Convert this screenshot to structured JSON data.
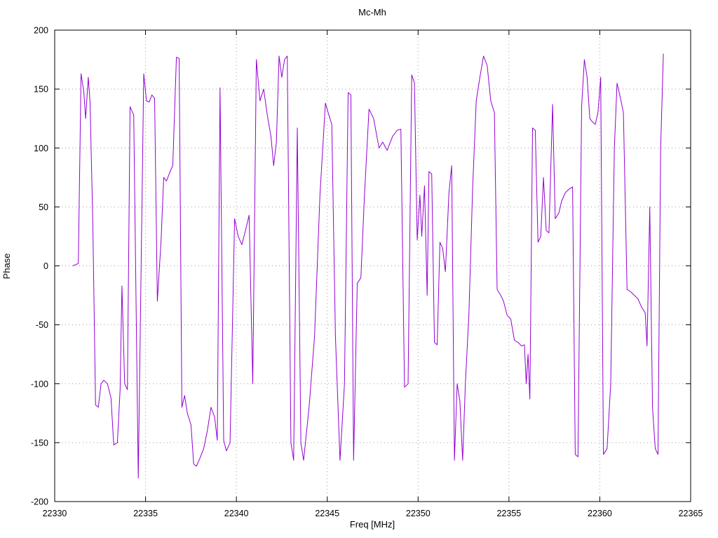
{
  "chart_data": {
    "type": "line",
    "title": "Mc-Mh",
    "xlabel": "Freq [MHz]",
    "ylabel": "Phase",
    "xlim": [
      22330,
      22365
    ],
    "ylim": [
      -200,
      200
    ],
    "grid": true,
    "legend": "none",
    "line_color": "#9400d3",
    "xticks": [
      22330,
      22335,
      22340,
      22345,
      22350,
      22355,
      22360,
      22365
    ],
    "yticks": [
      -200,
      -150,
      -100,
      -50,
      0,
      50,
      100,
      150,
      200
    ],
    "series": [
      {
        "name": "Mc-Mh",
        "points": [
          [
            22331.0,
            0
          ],
          [
            22331.3,
            2
          ],
          [
            22331.45,
            163
          ],
          [
            22331.6,
            148
          ],
          [
            22331.7,
            125
          ],
          [
            22331.85,
            160
          ],
          [
            22331.95,
            138
          ],
          [
            22332.1,
            35
          ],
          [
            22332.25,
            -118
          ],
          [
            22332.4,
            -120
          ],
          [
            22332.55,
            -100
          ],
          [
            22332.7,
            -97
          ],
          [
            22332.9,
            -100
          ],
          [
            22333.1,
            -112
          ],
          [
            22333.25,
            -152
          ],
          [
            22333.45,
            -150
          ],
          [
            22333.6,
            -105
          ],
          [
            22333.7,
            -17
          ],
          [
            22333.85,
            -100
          ],
          [
            22334.0,
            -105
          ],
          [
            22334.15,
            135
          ],
          [
            22334.35,
            128
          ],
          [
            22334.6,
            -180
          ],
          [
            22334.9,
            163
          ],
          [
            22335.05,
            140
          ],
          [
            22335.2,
            139
          ],
          [
            22335.35,
            145
          ],
          [
            22335.5,
            142
          ],
          [
            22335.65,
            -30
          ],
          [
            22335.85,
            20
          ],
          [
            22336.0,
            75
          ],
          [
            22336.15,
            72
          ],
          [
            22336.35,
            80
          ],
          [
            22336.5,
            85
          ],
          [
            22336.7,
            177
          ],
          [
            22336.85,
            176
          ],
          [
            22337.0,
            -120
          ],
          [
            22337.15,
            -110
          ],
          [
            22337.3,
            -125
          ],
          [
            22337.5,
            -135
          ],
          [
            22337.65,
            -168
          ],
          [
            22337.8,
            -170
          ],
          [
            22338.0,
            -163
          ],
          [
            22338.2,
            -155
          ],
          [
            22338.4,
            -140
          ],
          [
            22338.6,
            -120
          ],
          [
            22338.8,
            -128
          ],
          [
            22338.95,
            -148
          ],
          [
            22339.1,
            151
          ],
          [
            22339.3,
            -148
          ],
          [
            22339.45,
            -157
          ],
          [
            22339.65,
            -150
          ],
          [
            22339.9,
            40
          ],
          [
            22340.1,
            25
          ],
          [
            22340.3,
            18
          ],
          [
            22340.5,
            30
          ],
          [
            22340.7,
            43
          ],
          [
            22340.9,
            -100
          ],
          [
            22341.1,
            175
          ],
          [
            22341.3,
            140
          ],
          [
            22341.5,
            150
          ],
          [
            22341.7,
            128
          ],
          [
            22341.9,
            110
          ],
          [
            22342.05,
            85
          ],
          [
            22342.2,
            105
          ],
          [
            22342.35,
            178
          ],
          [
            22342.5,
            160
          ],
          [
            22342.65,
            175
          ],
          [
            22342.8,
            178
          ],
          [
            22343.0,
            -150
          ],
          [
            22343.15,
            -165
          ],
          [
            22343.35,
            117
          ],
          [
            22343.55,
            -150
          ],
          [
            22343.7,
            -165
          ],
          [
            22344.0,
            -120
          ],
          [
            22344.3,
            -60
          ],
          [
            22344.6,
            60
          ],
          [
            22344.9,
            138
          ],
          [
            22345.05,
            130
          ],
          [
            22345.25,
            120
          ],
          [
            22345.45,
            -60
          ],
          [
            22345.7,
            -165
          ],
          [
            22345.95,
            -100
          ],
          [
            22346.15,
            147
          ],
          [
            22346.3,
            145
          ],
          [
            22346.45,
            -165
          ],
          [
            22346.65,
            -15
          ],
          [
            22346.85,
            -10
          ],
          [
            22347.05,
            60
          ],
          [
            22347.3,
            133
          ],
          [
            22347.55,
            125
          ],
          [
            22347.85,
            100
          ],
          [
            22348.05,
            105
          ],
          [
            22348.3,
            98
          ],
          [
            22348.6,
            110
          ],
          [
            22348.85,
            115
          ],
          [
            22349.05,
            116
          ],
          [
            22349.25,
            -103
          ],
          [
            22349.45,
            -100
          ],
          [
            22349.65,
            162
          ],
          [
            22349.8,
            155
          ],
          [
            22349.95,
            22
          ],
          [
            22350.1,
            60
          ],
          [
            22350.2,
            25
          ],
          [
            22350.35,
            68
          ],
          [
            22350.5,
            -25
          ],
          [
            22350.6,
            80
          ],
          [
            22350.75,
            78
          ],
          [
            22350.9,
            -65
          ],
          [
            22351.05,
            -67
          ],
          [
            22351.2,
            20
          ],
          [
            22351.35,
            15
          ],
          [
            22351.5,
            -5
          ],
          [
            22351.7,
            62
          ],
          [
            22351.85,
            85
          ],
          [
            22352.0,
            -165
          ],
          [
            22352.15,
            -100
          ],
          [
            22352.3,
            -115
          ],
          [
            22352.45,
            -165
          ],
          [
            22352.6,
            -100
          ],
          [
            22352.8,
            -40
          ],
          [
            22353.0,
            65
          ],
          [
            22353.2,
            140
          ],
          [
            22353.4,
            160
          ],
          [
            22353.6,
            178
          ],
          [
            22353.8,
            170
          ],
          [
            22354.0,
            140
          ],
          [
            22354.2,
            130
          ],
          [
            22354.35,
            -20
          ],
          [
            22354.55,
            -25
          ],
          [
            22354.7,
            -30
          ],
          [
            22354.9,
            -42
          ],
          [
            22355.1,
            -45
          ],
          [
            22355.3,
            -63
          ],
          [
            22355.5,
            -65
          ],
          [
            22355.7,
            -68
          ],
          [
            22355.85,
            -67
          ],
          [
            22355.95,
            -100
          ],
          [
            22356.05,
            -75
          ],
          [
            22356.15,
            -113
          ],
          [
            22356.3,
            117
          ],
          [
            22356.45,
            115
          ],
          [
            22356.6,
            20
          ],
          [
            22356.75,
            25
          ],
          [
            22356.9,
            75
          ],
          [
            22357.05,
            30
          ],
          [
            22357.2,
            28
          ],
          [
            22357.4,
            137
          ],
          [
            22357.55,
            40
          ],
          [
            22357.75,
            45
          ],
          [
            22357.9,
            55
          ],
          [
            22358.1,
            62
          ],
          [
            22358.3,
            65
          ],
          [
            22358.5,
            67
          ],
          [
            22358.65,
            -160
          ],
          [
            22358.8,
            -162
          ],
          [
            22359.0,
            135
          ],
          [
            22359.15,
            175
          ],
          [
            22359.3,
            160
          ],
          [
            22359.45,
            125
          ],
          [
            22359.6,
            122
          ],
          [
            22359.75,
            120
          ],
          [
            22359.9,
            130
          ],
          [
            22360.05,
            160
          ],
          [
            22360.2,
            -160
          ],
          [
            22360.4,
            -155
          ],
          [
            22360.6,
            -100
          ],
          [
            22360.8,
            100
          ],
          [
            22360.95,
            155
          ],
          [
            22361.1,
            145
          ],
          [
            22361.3,
            130
          ],
          [
            22361.5,
            -20
          ],
          [
            22361.7,
            -22
          ],
          [
            22361.9,
            -25
          ],
          [
            22362.1,
            -28
          ],
          [
            22362.3,
            -35
          ],
          [
            22362.5,
            -40
          ],
          [
            22362.6,
            -68
          ],
          [
            22362.75,
            50
          ],
          [
            22362.9,
            -120
          ],
          [
            22363.05,
            -155
          ],
          [
            22363.2,
            -160
          ],
          [
            22363.35,
            100
          ],
          [
            22363.5,
            180
          ]
        ]
      }
    ]
  }
}
